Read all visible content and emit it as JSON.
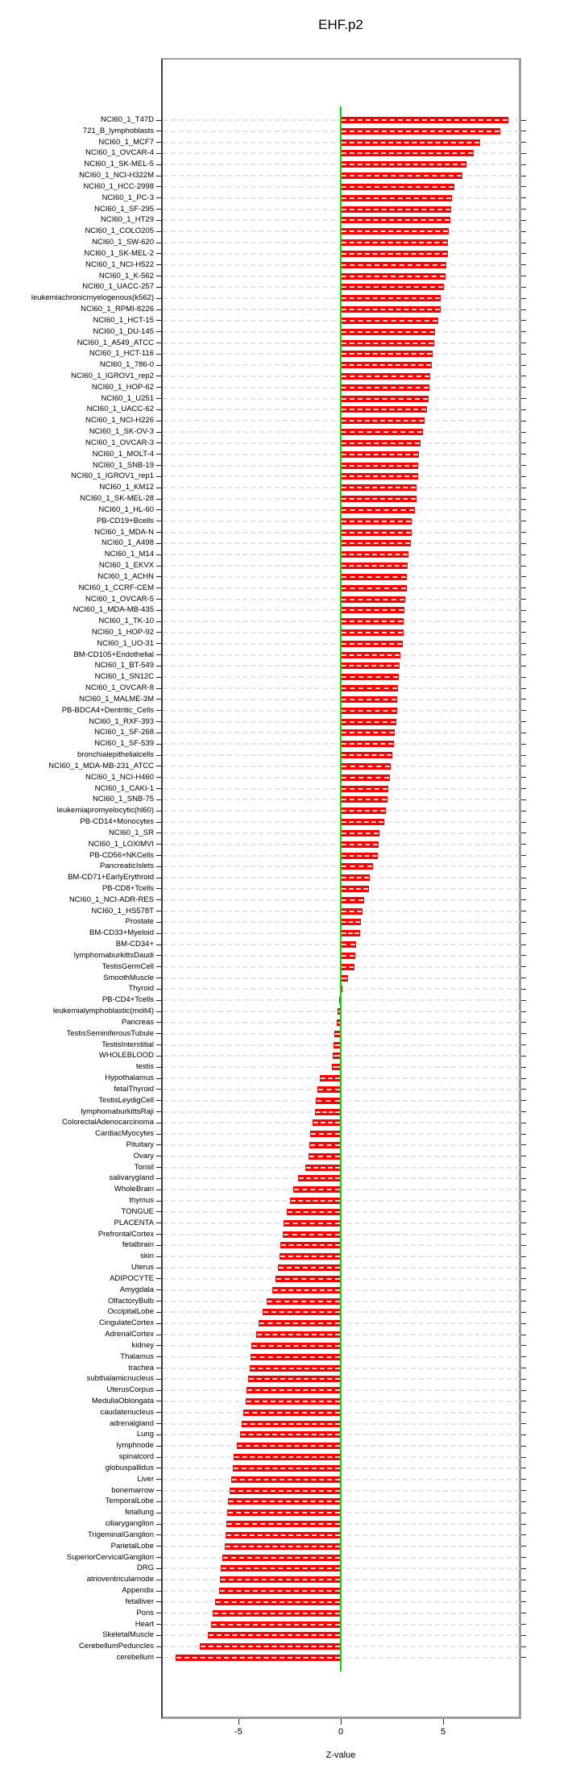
{
  "title": "EHF.p2",
  "chart_data": {
    "type": "bar",
    "orientation": "horizontal",
    "title": "EHF.p2",
    "xlabel": "Z-value",
    "ylabel": "",
    "x_ticks": [
      -5,
      0,
      5
    ],
    "xlim": [
      -8.8,
      8.8
    ],
    "grid": "dashed-horizontal",
    "legend": "none",
    "bar_color": "#ff0000",
    "zero_line_color": "#00dc00",
    "categories": [
      "NCI60_1_T47D",
      "721_B_lymphoblasts",
      "NCI60_1_MCF7",
      "NCI60_1_OVCAR-4",
      "NCI60_1_SK-MEL-5",
      "NCI60_1_NCI-H322M",
      "NCI60_1_HCC-2998",
      "NCI60_1_PC-3",
      "NCI60_1_SF-295",
      "NCI60_1_HT29",
      "NCI60_1_COLO205",
      "NCI60_1_SW-620",
      "NCI60_1_SK-MEL-2",
      "NCI60_1_NCI-H522",
      "NCI60_1_K-562",
      "NCI60_1_UACC-257",
      "leukemiachronicmyelogenous(k562)",
      "NCI60_1_RPMI-8226",
      "NCI60_1_HCT-15",
      "NCI60_1_DU-145",
      "NCI60_1_A549_ATCC",
      "NCI60_1_HCT-116",
      "NCI60_1_786-0",
      "NCI60_1_IGROV1_rep2",
      "NCI60_1_HOP-62",
      "NCI60_1_U251",
      "NCI60_1_UACC-62",
      "NCI60_1_NCI-H226",
      "NCI60_1_SK-OV-3",
      "NCI60_1_OVCAR-3",
      "NCI60_1_MOLT-4",
      "NCI60_1_SNB-19",
      "NCI60_1_IGROV1_rep1",
      "NCI60_1_KM12",
      "NCI60_1_SK-MEL-28",
      "NCI60_1_HL-60",
      "PB-CD19+Bcells",
      "NCI60_1_MDA-N",
      "NCI60_1_A498",
      "NCI60_1_M14",
      "NCI60_1_EKVX",
      "NCI60_1_ACHN",
      "NCI60_1_CCRF-CEM",
      "NCI60_1_OVCAR-5",
      "NCI60_1_MDA-MB-435",
      "NCI60_1_TK-10",
      "NCI60_1_HOP-92",
      "NCI60_1_UO-31",
      "BM-CD105+Endothelial",
      "NCI60_1_BT-549",
      "NCI60_1_SN12C",
      "NCI60_1_OVCAR-8",
      "NCI60_1_MALME-3M",
      "PB-BDCA4+Dentritic_Cells",
      "NCI60_1_RXF-393",
      "NCI60_1_SF-268",
      "NCI60_1_SF-539",
      "bronchialepithelialcells",
      "NCI60_1_MDA-MB-231_ATCC",
      "NCI60_1_NCI-H460",
      "NCI60_1_CAKI-1",
      "NCI60_1_SNB-75",
      "leukemiapromyelocytic(hl60)",
      "PB-CD14+Monocytes",
      "NCI60_1_SR",
      "NCI60_1_LOXIMVI",
      "PB-CD56+NKCells",
      "PancreaticIslets",
      "BM-CD71+EarlyErythroid",
      "PB-CD8+Tcells",
      "NCI60_1_NCI-ADR-RES",
      "NCI60_1_HS578T",
      "Prostate",
      "BM-CD33+Myeloid",
      "BM-CD34+",
      "lymphomaburkittsDaudi",
      "TestisGermCell",
      "SmoothMuscle",
      "Thyroid",
      "PB-CD4+Tcells",
      "leukemialymphoblastic(molt4)",
      "Pancreas",
      "TestisSeminiferousTubule",
      "TestisInterstitial",
      "WHOLEBLOOD",
      "testis",
      "Hypothalamus",
      "fetalThyroid",
      "TestisLeydigCell",
      "lymphomaburkittsRaji",
      "ColorectalAdenocarcinoma",
      "CardiacMyocytes",
      "Pituitary",
      "Ovary",
      "Tonsil",
      "salivarygland",
      "WholeBrain",
      "thymus",
      "TONGUE",
      "PLACENTA",
      "PrefrontalCortex",
      "fetalbrain",
      "skin",
      "Uterus",
      "ADIPOCYTE",
      "Amygdala",
      "OlfactoryBulb",
      "OccipitalLobe",
      "CingulateCortex",
      "AdrenalCortex",
      "kidney",
      "Thalamus",
      "trachea",
      "subthalamicnucleus",
      "UterusCorpus",
      "MedullaOblongata",
      "caudatenucleus",
      "adrenalgland",
      "Lung",
      "lymphnode",
      "spinalcord",
      "globuspallidus",
      "Liver",
      "bonemarrow",
      "TemporalLobe",
      "fetallung",
      "ciliaryganglion",
      "TrigeminalGanglion",
      "ParietalLobe",
      "SuperiorCervicalGanglion",
      "DRG",
      "atrioventricularnode",
      "Appendix",
      "fetalliver",
      "Pons",
      "Heart",
      "SkeletalMuscle",
      "CerebellumPeduncles",
      "cerebellum"
    ],
    "values": [
      8.2,
      7.8,
      6.8,
      6.5,
      6.15,
      5.95,
      5.55,
      5.45,
      5.4,
      5.35,
      5.28,
      5.25,
      5.22,
      5.15,
      5.1,
      5.05,
      4.9,
      4.88,
      4.75,
      4.62,
      4.55,
      4.5,
      4.45,
      4.38,
      4.32,
      4.28,
      4.2,
      4.1,
      4.0,
      3.9,
      3.8,
      3.78,
      3.76,
      3.72,
      3.7,
      3.62,
      3.48,
      3.46,
      3.43,
      3.3,
      3.27,
      3.24,
      3.22,
      3.13,
      3.11,
      3.09,
      3.07,
      3.02,
      2.9,
      2.87,
      2.84,
      2.81,
      2.77,
      2.74,
      2.7,
      2.62,
      2.6,
      2.53,
      2.45,
      2.39,
      2.33,
      2.28,
      2.19,
      2.11,
      1.9,
      1.86,
      1.81,
      1.56,
      1.43,
      1.37,
      1.15,
      1.06,
      1.0,
      0.96,
      0.76,
      0.7,
      0.67,
      0.34,
      0.07,
      -0.08,
      -0.15,
      -0.18,
      -0.33,
      -0.36,
      -0.41,
      -0.44,
      -1.04,
      -1.13,
      -1.24,
      -1.26,
      -1.39,
      -1.5,
      -1.52,
      -1.56,
      -1.72,
      -2.09,
      -2.31,
      -2.48,
      -2.65,
      -2.78,
      -2.83,
      -2.97,
      -3.0,
      -3.07,
      -3.2,
      -3.36,
      -3.63,
      -3.82,
      -4.03,
      -4.15,
      -4.38,
      -4.41,
      -4.44,
      -4.54,
      -4.61,
      -4.65,
      -4.75,
      -4.84,
      -4.93,
      -5.07,
      -5.24,
      -5.26,
      -5.37,
      -5.43,
      -5.5,
      -5.56,
      -5.59,
      -5.63,
      -5.65,
      -5.79,
      -5.87,
      -5.9,
      -5.96,
      -6.14,
      -6.26,
      -6.35,
      -6.51,
      -6.88,
      -8.08
    ]
  }
}
